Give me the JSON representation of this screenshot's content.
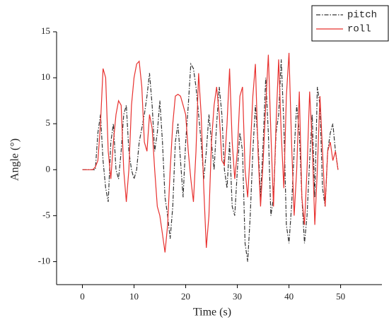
{
  "chart_data": {
    "type": "line",
    "xlabel": "Time (s)",
    "ylabel": "Angle (°)",
    "x": [
      0,
      0.5,
      1,
      1.5,
      2,
      2.5,
      3,
      3.5,
      4,
      4.5,
      5,
      5.5,
      6,
      6.5,
      7,
      7.5,
      8,
      8.5,
      9,
      9.5,
      10,
      10.5,
      11,
      11.5,
      12,
      12.5,
      13,
      13.5,
      14,
      14.5,
      15,
      15.5,
      16,
      16.5,
      17,
      17.5,
      18,
      18.5,
      19,
      19.5,
      20,
      20.5,
      21,
      21.5,
      22,
      22.5,
      23,
      23.5,
      24,
      24.5,
      25,
      25.5,
      26,
      26.5,
      27,
      27.5,
      28,
      28.5,
      29,
      29.5,
      30,
      30.5,
      31,
      31.5,
      32,
      32.5,
      33,
      33.5,
      34,
      34.5,
      35,
      35.5,
      36,
      36.5,
      37,
      37.5,
      38,
      38.5,
      39,
      39.5,
      40,
      40.5,
      41,
      41.5,
      42,
      42.5,
      43,
      43.5,
      44,
      44.5,
      45,
      45.5,
      46,
      46.5,
      47,
      47.5,
      48,
      48.5,
      49,
      49.5
    ],
    "series": [
      {
        "name": "pitch",
        "color": "#333333",
        "dash": "6,2,1.5,2",
        "values": [
          0,
          0,
          0,
          0,
          0,
          0,
          4,
          6,
          1,
          -2,
          -3.5,
          3,
          5,
          0,
          -1,
          2,
          6,
          7,
          2,
          0,
          -1,
          0,
          3,
          4.5,
          6,
          8,
          10.5,
          7,
          2,
          4,
          7.5,
          3,
          -3,
          -5,
          -7.5,
          -4,
          3,
          5,
          1,
          -3,
          3,
          7,
          11.5,
          11,
          9,
          6,
          3,
          -1,
          2,
          6,
          3,
          0,
          5,
          9,
          6,
          0,
          -2,
          3,
          -4,
          -5,
          0,
          4,
          2,
          -8,
          -10,
          -5,
          2,
          7,
          3,
          -3,
          3,
          10,
          4,
          -5,
          -3,
          4,
          6,
          12,
          5,
          -6,
          -8,
          -4,
          2,
          7,
          4,
          -3,
          -8,
          -5,
          1,
          6,
          -3,
          9,
          7,
          -2,
          -4,
          2,
          4,
          5,
          2,
          0
        ]
      },
      {
        "name": "roll",
        "color": "#e8312f",
        "values": [
          0,
          0,
          0,
          0,
          0,
          0.3,
          1,
          5,
          11,
          10,
          2,
          -1,
          3,
          6,
          7.5,
          7,
          0,
          -3.5,
          0,
          7,
          10,
          11.5,
          11.8,
          9,
          3,
          2,
          6,
          4.5,
          0,
          -4,
          -5,
          -7,
          -9,
          -6,
          0,
          5,
          8,
          8.2,
          8,
          7,
          6,
          2,
          -1,
          -3.5,
          2,
          10.5,
          6,
          -2,
          -8.5,
          -5,
          3,
          7,
          9,
          6,
          1,
          0.5,
          5,
          11,
          3,
          -1,
          2,
          8,
          9,
          0,
          -3,
          2,
          8,
          11.5,
          2,
          -4,
          1,
          7,
          12.5,
          4,
          -4,
          5,
          12,
          4,
          -2,
          8,
          12.7,
          3,
          -5,
          0,
          8.5,
          -3,
          -6,
          0,
          8.5,
          3,
          -6,
          0,
          8,
          2,
          -4,
          2,
          3,
          1,
          2,
          0
        ]
      }
    ],
    "xlim": [
      -5,
      58
    ],
    "ylim": [
      -12.5,
      15
    ],
    "xticks": [
      0,
      10,
      20,
      30,
      40,
      50
    ],
    "yticks": [
      -10,
      -5,
      0,
      5,
      10,
      15
    ],
    "legend": "upper right"
  }
}
